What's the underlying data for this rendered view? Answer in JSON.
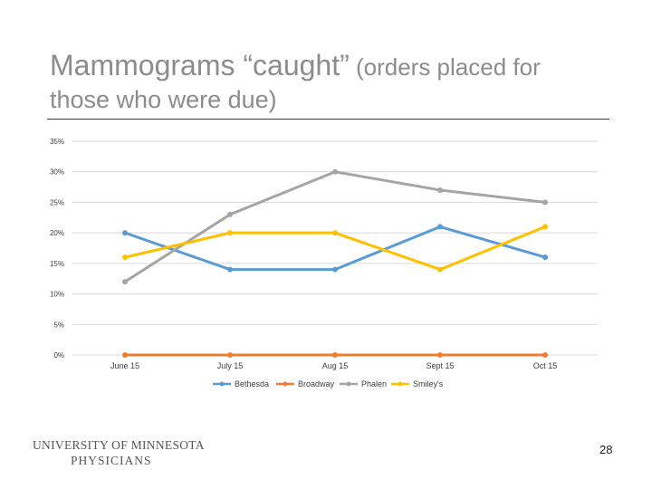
{
  "slide": {
    "title_main": "Mammograms “caught”",
    "title_sub": " (orders placed for",
    "title_line2": "those who were due)",
    "logo_line1": "UNIVERSITY OF MINNESOTA",
    "logo_line2": "PHYSICIANS",
    "page_number": "28"
  },
  "colors": {
    "rule": "#8b1a1a",
    "grid": "#d9d9d9",
    "axis_text": "#404040"
  },
  "chart_data": {
    "type": "line",
    "categories": [
      "June 15",
      "July 15",
      "Aug 15",
      "Sept 15",
      "Oct 15"
    ],
    "y_ticks": [
      "0%",
      "5%",
      "10%",
      "15%",
      "20%",
      "25%",
      "30%",
      "35%"
    ],
    "ylim": [
      0,
      35
    ],
    "grid": true,
    "legend_position": "bottom",
    "series": [
      {
        "name": "Bethesda",
        "color": "#5b9bd5",
        "values": [
          20,
          14,
          14,
          21,
          16
        ]
      },
      {
        "name": "Broadway",
        "color": "#ed7d31",
        "values": [
          0,
          0,
          0,
          0,
          0
        ]
      },
      {
        "name": "Phalen",
        "color": "#a5a5a5",
        "values": [
          12,
          23,
          30,
          27,
          25
        ]
      },
      {
        "name": "Smiley's",
        "color": "#ffc000",
        "values": [
          16,
          20,
          20,
          14,
          21
        ]
      }
    ]
  }
}
